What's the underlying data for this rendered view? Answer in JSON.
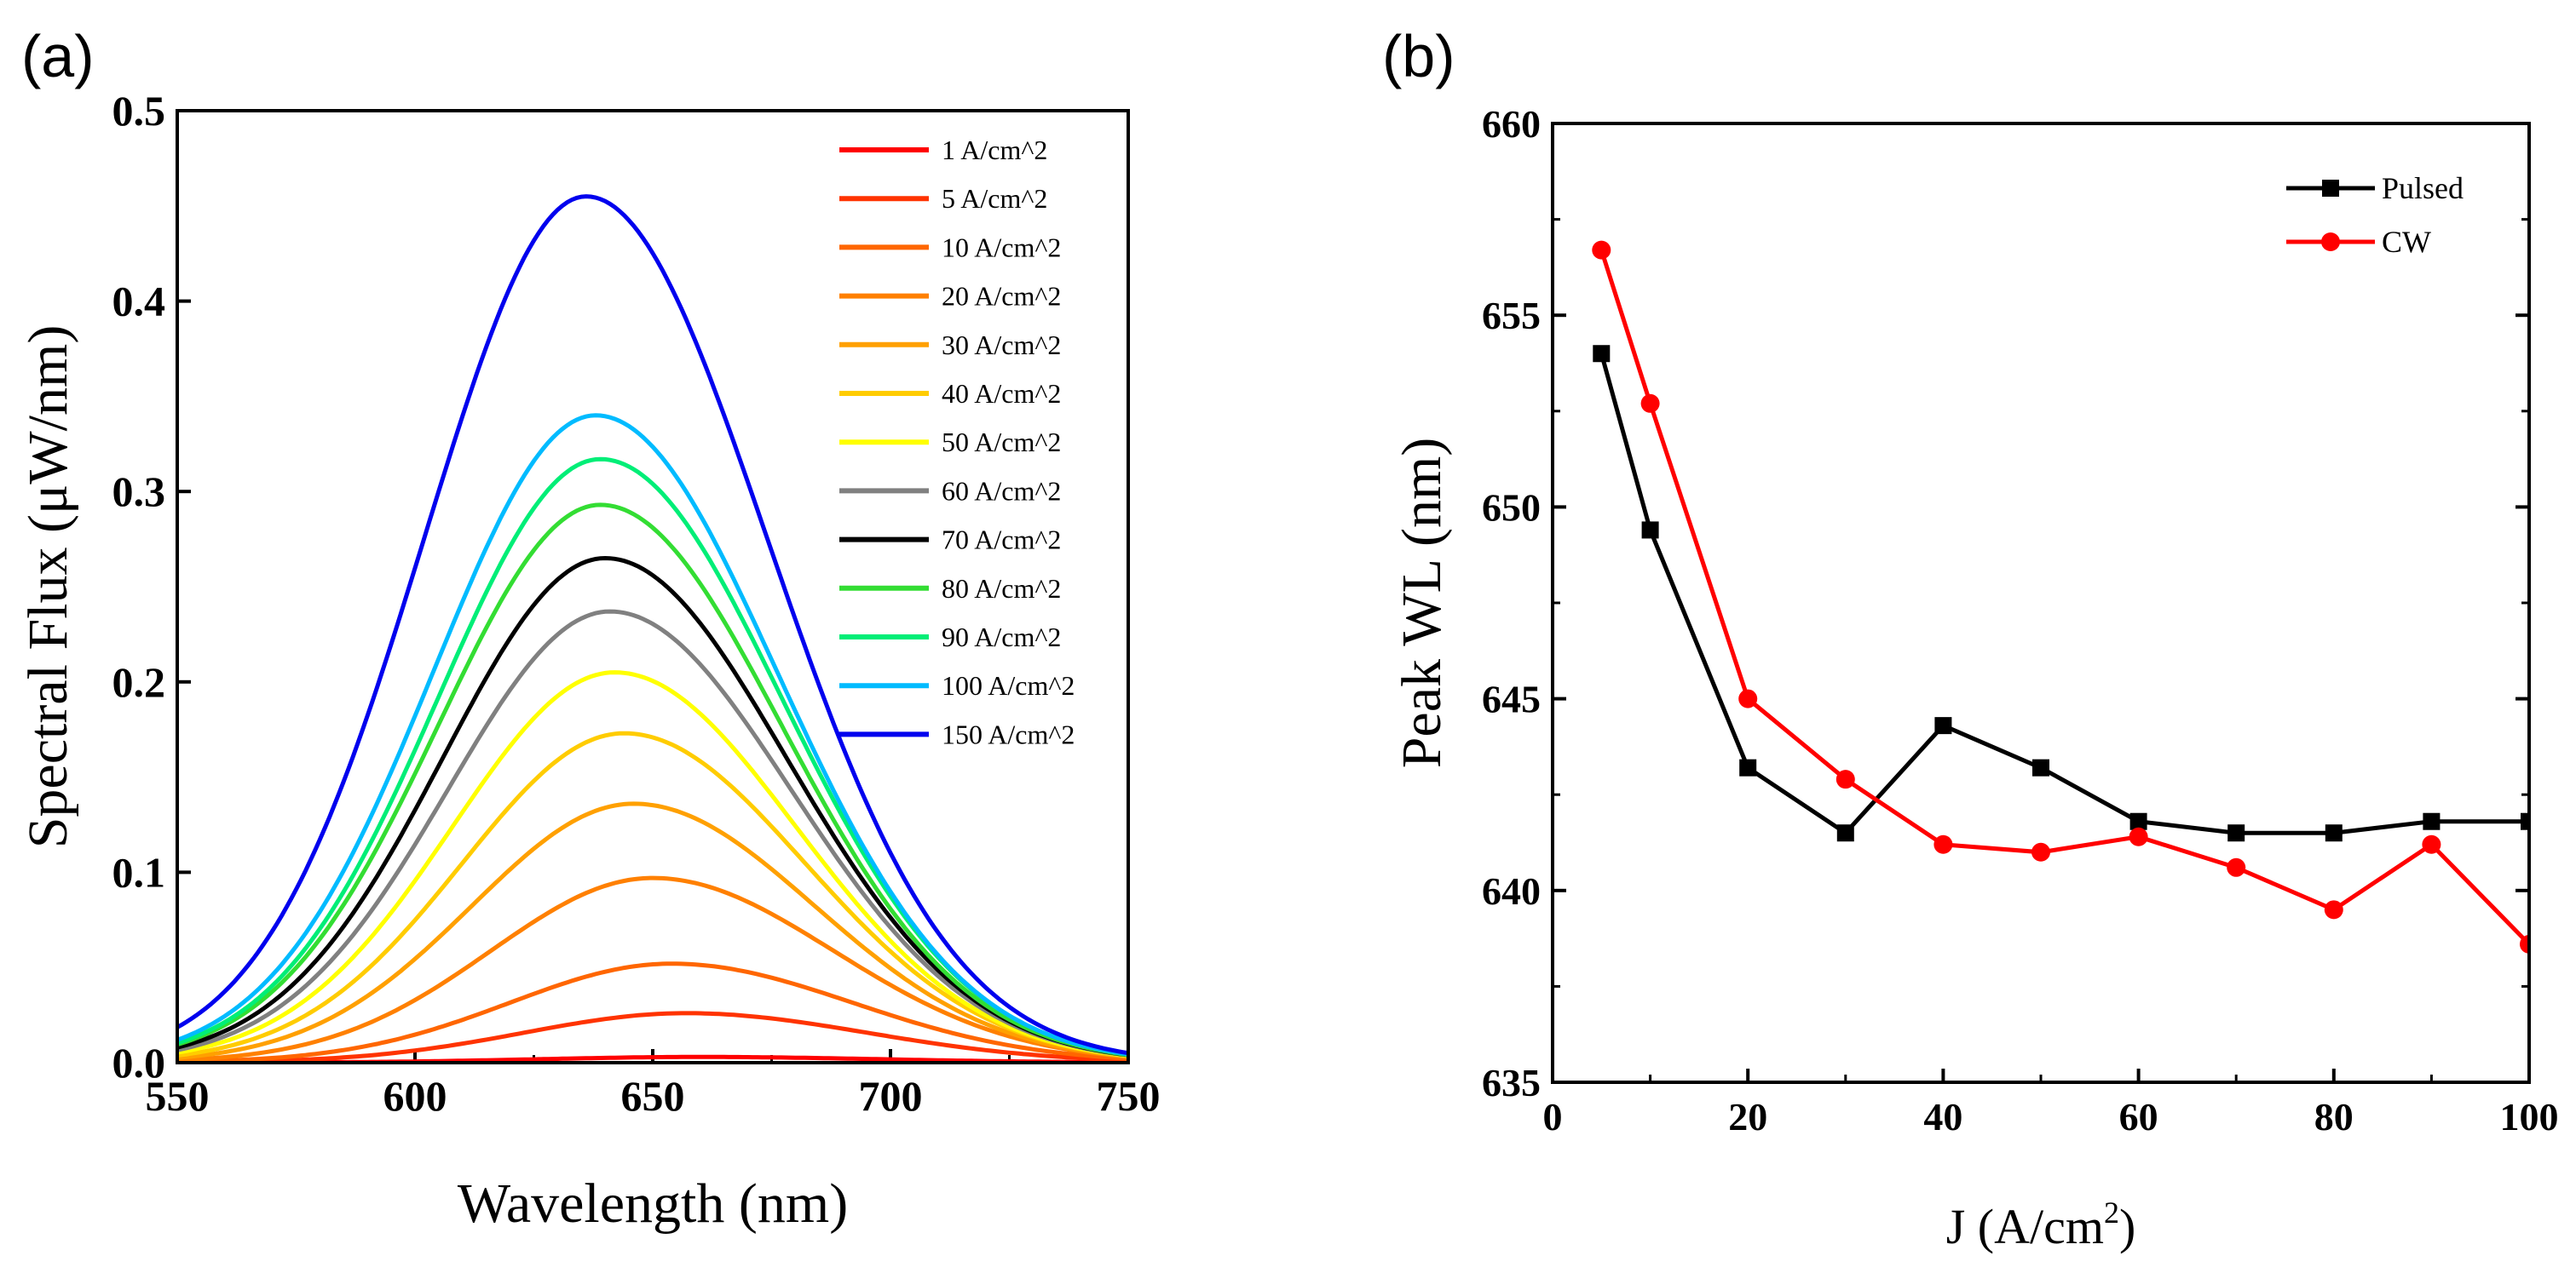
{
  "chart_data": [
    {
      "type": "line",
      "panel_label": "(a)",
      "xlabel": "Wavelength (nm)",
      "ylabel": "Spectral Flux (μW/nm)",
      "xlim": [
        550,
        750
      ],
      "ylim": [
        0,
        0.5
      ],
      "x_ticks": [
        "550",
        "600",
        "650",
        "700",
        "750"
      ],
      "y_ticks": [
        "0.0",
        "0.1",
        "0.2",
        "0.3",
        "0.4",
        "0.5"
      ],
      "legend_position": "top-right",
      "series": [
        {
          "name": "1 A/cm^2",
          "color": "#ff0000",
          "peak": 0.003,
          "center": 660
        },
        {
          "name": "5 A/cm^2",
          "color": "#ff3300",
          "peak": 0.026,
          "center": 657
        },
        {
          "name": "10 A/cm^2",
          "color": "#ff6600",
          "peak": 0.052,
          "center": 654
        },
        {
          "name": "20 A/cm^2",
          "color": "#ff8000",
          "peak": 0.097,
          "center": 650
        },
        {
          "name": "30 A/cm^2",
          "color": "#ffa000",
          "peak": 0.136,
          "center": 646
        },
        {
          "name": "40 A/cm^2",
          "color": "#ffcc00",
          "peak": 0.173,
          "center": 644
        },
        {
          "name": "50 A/cm^2",
          "color": "#ffff00",
          "peak": 0.205,
          "center": 642
        },
        {
          "name": "60 A/cm^2",
          "color": "#808080",
          "peak": 0.237,
          "center": 641
        },
        {
          "name": "70 A/cm^2",
          "color": "#000000",
          "peak": 0.265,
          "center": 640
        },
        {
          "name": "80 A/cm^2",
          "color": "#33dd33",
          "peak": 0.293,
          "center": 639
        },
        {
          "name": "90 A/cm^2",
          "color": "#00ee77",
          "peak": 0.317,
          "center": 639
        },
        {
          "name": "100 A/cm^2",
          "color": "#00bbff",
          "peak": 0.34,
          "center": 638
        },
        {
          "name": "150 A/cm^2",
          "color": "#0000ee",
          "peak": 0.455,
          "center": 636
        }
      ]
    },
    {
      "type": "line",
      "panel_label": "(b)",
      "xlabel": "J (A/cm",
      "xlabel_sup": "2",
      "xlabel_end": ")",
      "ylabel": "Peak WL (nm)",
      "xlim": [
        0,
        100
      ],
      "ylim": [
        635,
        660
      ],
      "x_ticks": [
        "0",
        "20",
        "40",
        "60",
        "80",
        "100"
      ],
      "y_ticks": [
        "635",
        "640",
        "645",
        "650",
        "655",
        "660"
      ],
      "legend_position": "top-right",
      "series": [
        {
          "name": "Pulsed",
          "color": "#000000",
          "marker": "square",
          "x": [
            5,
            10,
            20,
            30,
            40,
            50,
            60,
            70,
            80,
            90,
            100
          ],
          "y": [
            654.0,
            649.4,
            643.2,
            641.5,
            644.3,
            643.2,
            641.8,
            641.5,
            641.5,
            641.8,
            641.8
          ]
        },
        {
          "name": "CW",
          "color": "#ff0000",
          "marker": "circle",
          "x": [
            5,
            10,
            20,
            30,
            40,
            50,
            60,
            70,
            80,
            90,
            100
          ],
          "y": [
            656.7,
            652.7,
            645.0,
            642.9,
            641.2,
            641.0,
            641.4,
            640.6,
            639.5,
            641.2,
            638.6
          ]
        }
      ]
    }
  ]
}
